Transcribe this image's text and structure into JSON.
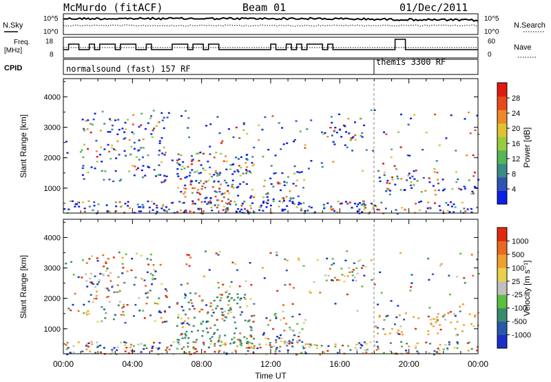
{
  "header": {
    "station": "McMurdo (fitACF)",
    "beam": "Beam 01",
    "date": "01/Dec/2011"
  },
  "noise_panel": {
    "left_label": "N.Sky",
    "right_label": "N.Search",
    "left_ticks": [
      "10^5",
      "10^0"
    ],
    "right_ticks": [
      "10^5",
      "10^0"
    ]
  },
  "freq_panel": {
    "left_label_line1": "Freq.",
    "left_label_line2": "[MHz]",
    "right_label": "Nave",
    "left_ticks": [
      "18",
      "8"
    ],
    "right_ticks": [
      "60",
      "0"
    ]
  },
  "cpid_panel": {
    "label": "CPID",
    "modes": [
      {
        "name": "normalsound (fast) 157 RF",
        "start_hour": 0
      },
      {
        "name": "themis 3300 RF",
        "start_hour": 18
      }
    ]
  },
  "chart_data": [
    {
      "type": "heatmap",
      "title": "",
      "ylabel": "Slant Range [km]",
      "xlabel": "Time UT",
      "y_ticks": [
        "1000",
        "2000",
        "3000",
        "4000"
      ],
      "ylim": [
        180,
        4600
      ],
      "x_ticks": [
        "00:00",
        "04:00",
        "08:00",
        "12:00",
        "16:00",
        "20:00",
        "00:00"
      ],
      "xlim_hours": [
        0,
        24
      ],
      "colorbar": {
        "label": "Power [dB]",
        "ticks": [
          "4",
          "8",
          "12",
          "16",
          "20",
          "24",
          "28"
        ],
        "colors": [
          "#0a1fe8",
          "#2f55b4",
          "#3c8a84",
          "#56b45a",
          "#98cc3c",
          "#e2c230",
          "#ef8a2a",
          "#e84a1e",
          "#e01a10"
        ]
      }
    },
    {
      "type": "heatmap",
      "title": "",
      "ylabel": "Slant Range [km]",
      "xlabel": "Time UT",
      "y_ticks": [
        "1000",
        "2000",
        "3000",
        "4000"
      ],
      "ylim": [
        180,
        4600
      ],
      "x_ticks": [
        "00:00",
        "04:00",
        "08:00",
        "12:00",
        "16:00",
        "20:00",
        "00:00"
      ],
      "xlim_hours": [
        0,
        24
      ],
      "colorbar": {
        "label": "Velocity [m s⁻¹]",
        "ticks": [
          "1000",
          "500",
          "100",
          "25",
          "-25",
          "-100",
          "-500",
          "-1000"
        ],
        "colors": [
          "#1a2ec8",
          "#2a58a8",
          "#3b8a6e",
          "#5abf3e",
          "#c0c0c0",
          "#e8d24a",
          "#f0a030",
          "#e86a20",
          "#e02a10"
        ]
      }
    }
  ],
  "x_axis_title": "Time UT"
}
